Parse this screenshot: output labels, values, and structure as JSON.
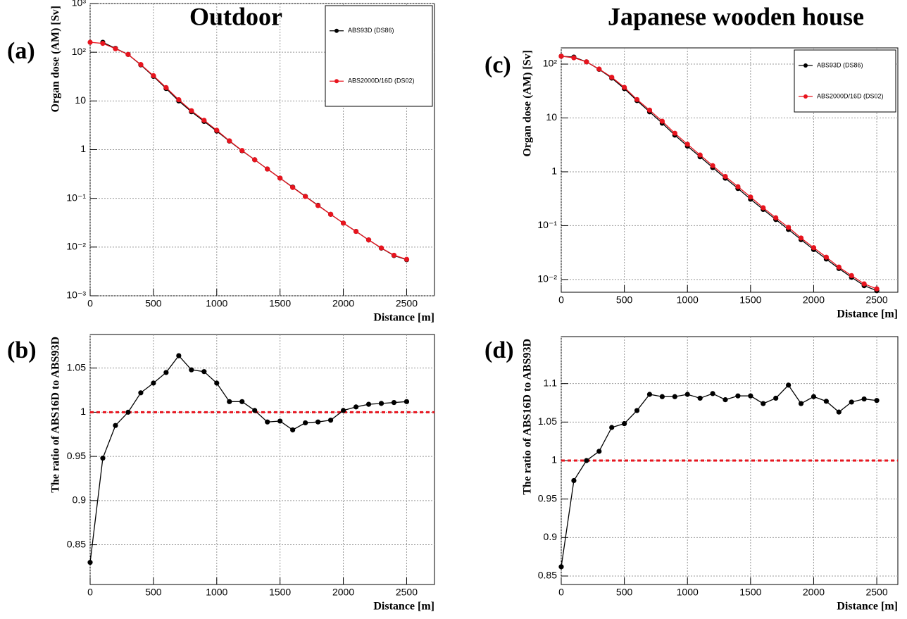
{
  "chart_data": [
    {
      "type": "line",
      "title": "Outdoor",
      "panel_label": "(a)",
      "x_label": "Distance [m]",
      "y_label": "Organ dose (AM) [Sv]",
      "log_y": true,
      "grid": true,
      "legend": "upper right",
      "x": [
        0,
        100,
        200,
        300,
        400,
        500,
        600,
        700,
        800,
        900,
        1000,
        1100,
        1200,
        1300,
        1400,
        1500,
        1600,
        1700,
        1800,
        1900,
        2000,
        2100,
        2200,
        2300,
        2400,
        2500
      ],
      "xlim": [
        0,
        2720
      ],
      "xticks": [
        0,
        500,
        1000,
        1500,
        2000,
        2500
      ],
      "ylim": [
        0.001,
        1000
      ],
      "yticks": [
        {
          "value": 1000,
          "label": "10³"
        },
        {
          "value": 100,
          "label": "10²"
        },
        10,
        1,
        {
          "value": 0.1,
          "label": "10⁻¹"
        },
        {
          "value": 0.01,
          "label": "10⁻²"
        },
        {
          "value": 0.001,
          "label": "10⁻³"
        }
      ],
      "series": [
        {
          "name": "ABS93D (DS86)",
          "color": "#000000",
          "values": [
            null,
            160,
            120,
            90,
            55,
            32,
            18,
            10,
            6,
            3.8,
            2.4,
            1.5,
            0.95,
            0.62,
            0.4,
            0.26,
            0.17,
            0.11,
            0.072,
            0.047,
            0.031,
            0.021,
            0.014,
            0.0095,
            0.0067,
            0.0055
          ]
        },
        {
          "name": "ABS2000D/16D (DS02)",
          "color": "#e8141e",
          "values": [
            160,
            152,
            118,
            90,
            56,
            33,
            18.8,
            10.6,
            6.3,
            4.0,
            2.5,
            1.52,
            0.96,
            0.62,
            0.4,
            0.26,
            0.167,
            0.109,
            0.071,
            0.047,
            0.031,
            0.021,
            0.014,
            0.0096,
            0.0068,
            0.0056
          ]
        }
      ]
    },
    {
      "type": "line",
      "panel_label": "(b)",
      "x_label": "Distance [m]",
      "y_label": "The ratio of ABS16D to ABS93D",
      "log_y": false,
      "grid": true,
      "reference_line": 1,
      "reference_color": "#e8141e",
      "x": [
        0,
        100,
        200,
        300,
        400,
        500,
        600,
        700,
        800,
        900,
        1000,
        1100,
        1200,
        1300,
        1400,
        1500,
        1600,
        1700,
        1800,
        1900,
        2000,
        2100,
        2200,
        2300,
        2400,
        2500
      ],
      "xlim": [
        0,
        2720
      ],
      "xticks": [
        0,
        500,
        1000,
        1500,
        2000,
        2500
      ],
      "ylim": [
        0.805,
        1.088
      ],
      "yticks": [
        0.85,
        0.9,
        0.95,
        1,
        1.05
      ],
      "series": [
        {
          "color": "#000000",
          "values": [
            0.83,
            0.948,
            0.985,
            1.0,
            1.022,
            1.033,
            1.045,
            1.064,
            1.048,
            1.046,
            1.033,
            1.012,
            1.012,
            1.002,
            0.989,
            0.99,
            0.98,
            0.988,
            0.989,
            0.991,
            1.002,
            1.006,
            1.009,
            1.01,
            1.011,
            1.012
          ]
        }
      ]
    },
    {
      "type": "line",
      "title": "Japanese wooden house",
      "panel_label": "(c)",
      "x_label": "Distance [m]",
      "y_label": "Organ dose (AM) [Sv]",
      "log_y": true,
      "grid": true,
      "legend": "upper right",
      "x": [
        0,
        100,
        200,
        300,
        400,
        500,
        600,
        700,
        800,
        900,
        1000,
        1100,
        1200,
        1300,
        1400,
        1500,
        1600,
        1700,
        1800,
        1900,
        2000,
        2100,
        2200,
        2300,
        2400,
        2500
      ],
      "xlim": [
        0,
        2667
      ],
      "xticks": [
        0,
        500,
        1000,
        1500,
        2000,
        2500
      ],
      "ylim": [
        0.0058,
        200
      ],
      "yticks": [
        {
          "value": 100,
          "label": "10²"
        },
        10,
        1,
        {
          "value": 0.1,
          "label": "10⁻¹"
        },
        {
          "value": 0.01,
          "label": "10⁻²"
        }
      ],
      "series": [
        {
          "name": "ABS93D (DS86)",
          "color": "#000000",
          "values": [
            140,
            135,
            110,
            80,
            55,
            35,
            21,
            13,
            8,
            4.8,
            3,
            1.9,
            1.2,
            0.76,
            0.49,
            0.31,
            0.2,
            0.13,
            0.085,
            0.055,
            0.036,
            0.024,
            0.016,
            0.011,
            0.0077,
            0.0062
          ]
        },
        {
          "name": "ABS2000D/16D (DS02)",
          "color": "#e8141e",
          "values": [
            140,
            131,
            110,
            81,
            57,
            37,
            22,
            14,
            8.7,
            5.2,
            3.25,
            2.05,
            1.3,
            0.82,
            0.53,
            0.34,
            0.215,
            0.14,
            0.093,
            0.059,
            0.039,
            0.026,
            0.017,
            0.0118,
            0.0083,
            0.0067
          ]
        }
      ]
    },
    {
      "type": "line",
      "panel_label": "(d)",
      "x_label": "Distance [m]",
      "y_label": "The ratio of ABS16D to ABS93D",
      "log_y": false,
      "grid": true,
      "reference_line": 1,
      "reference_color": "#e8141e",
      "x": [
        0,
        100,
        200,
        300,
        400,
        500,
        600,
        700,
        800,
        900,
        1000,
        1100,
        1200,
        1300,
        1400,
        1500,
        1600,
        1700,
        1800,
        1900,
        2000,
        2100,
        2200,
        2300,
        2400,
        2500
      ],
      "xlim": [
        0,
        2667
      ],
      "xticks": [
        0,
        500,
        1000,
        1500,
        2000,
        2500
      ],
      "ylim": [
        0.839,
        1.161
      ],
      "yticks": [
        0.85,
        0.9,
        0.95,
        1,
        1.05,
        1.1
      ],
      "series": [
        {
          "color": "#000000",
          "values": [
            0.862,
            0.974,
            1.0,
            1.012,
            1.043,
            1.048,
            1.065,
            1.086,
            1.083,
            1.083,
            1.086,
            1.081,
            1.087,
            1.079,
            1.084,
            1.084,
            1.074,
            1.081,
            1.098,
            1.074,
            1.083,
            1.077,
            1.063,
            1.076,
            1.08,
            1.078
          ]
        }
      ]
    }
  ]
}
